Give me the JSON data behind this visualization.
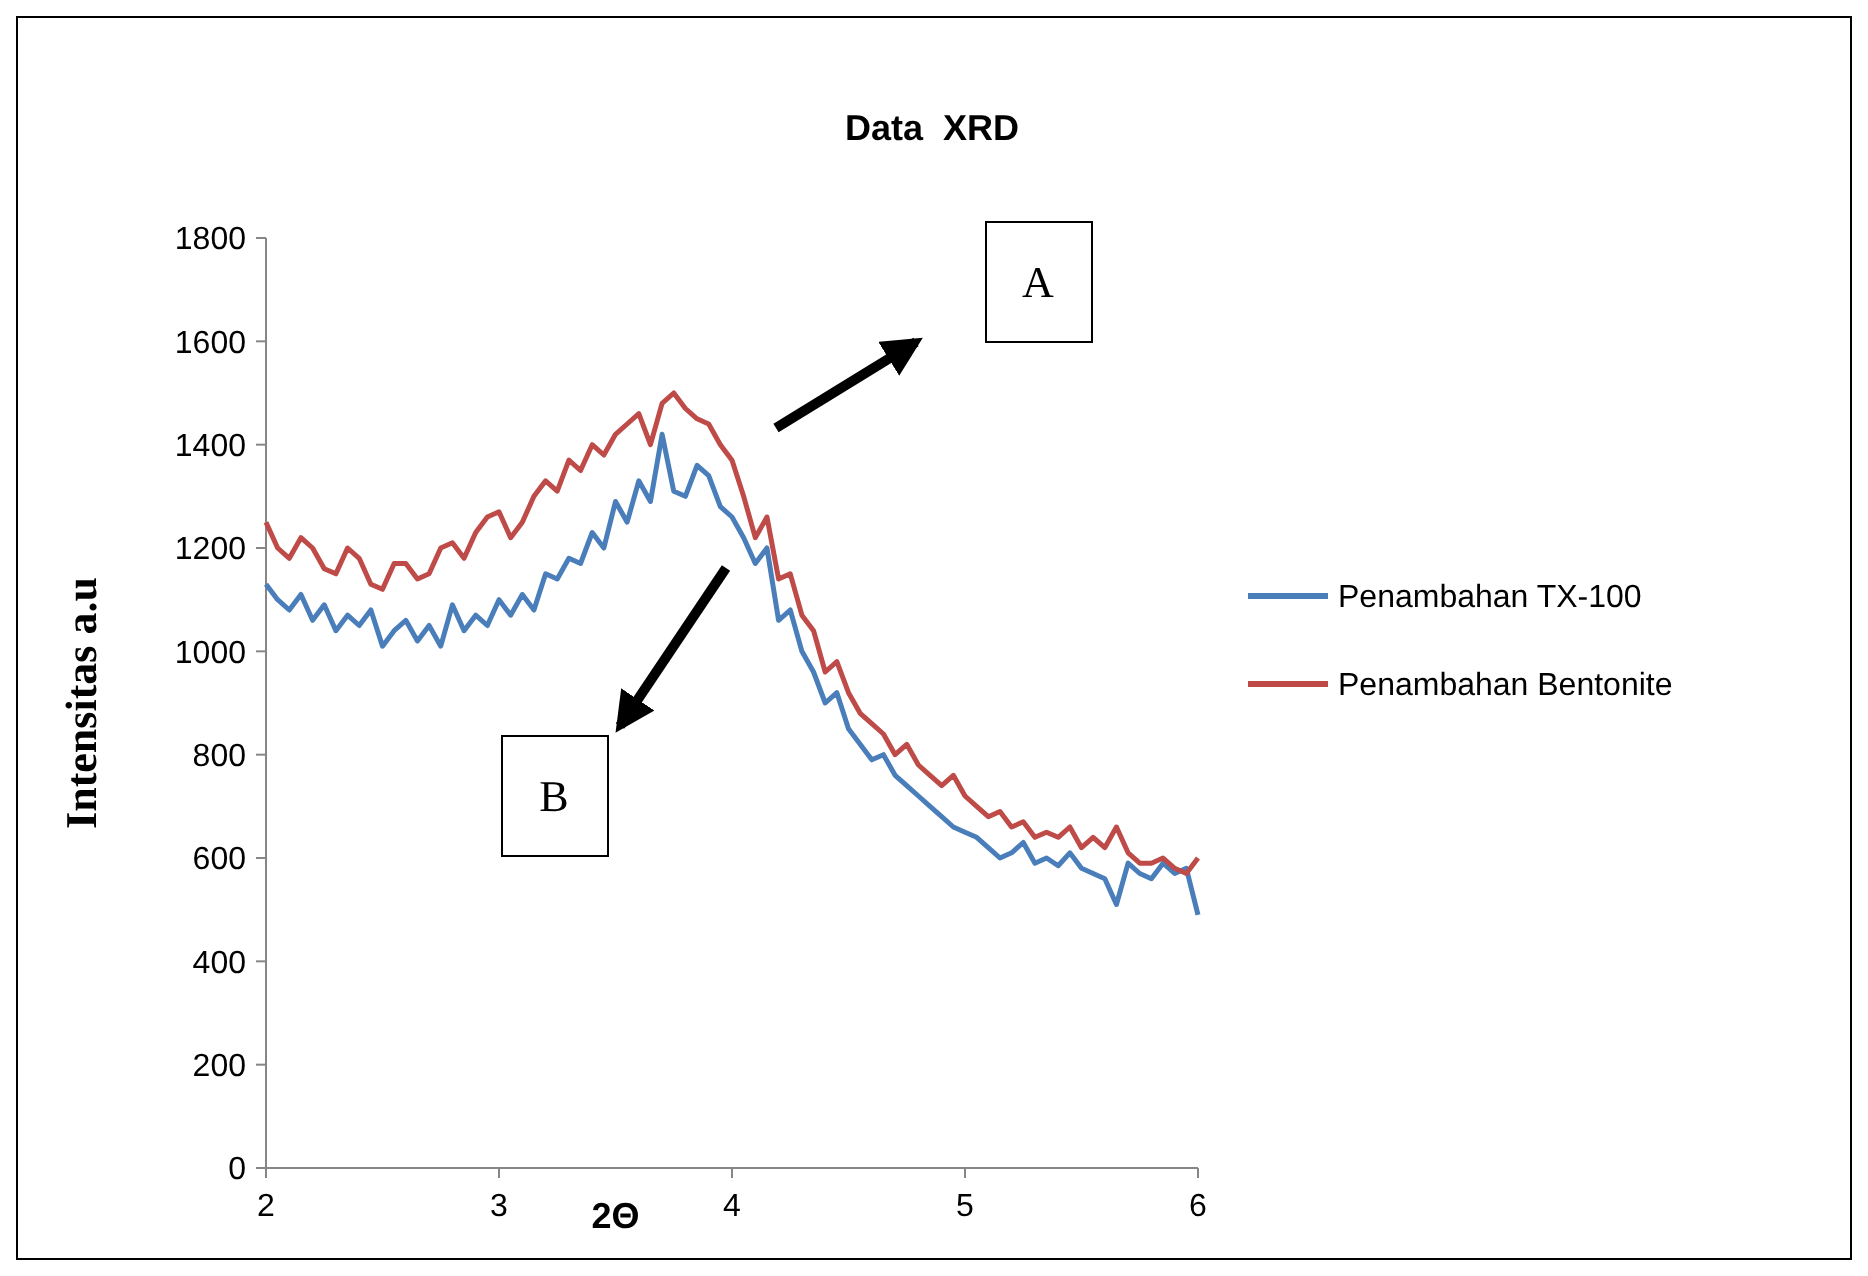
{
  "chart_data": {
    "type": "line",
    "title": "Data  XRD",
    "xlabel": "2Θ",
    "ylabel": "Intensitas a.u",
    "x": [
      2,
      2.05,
      2.1,
      2.15,
      2.2,
      2.25,
      2.3,
      2.35,
      2.4,
      2.45,
      2.5,
      2.55,
      2.6,
      2.65,
      2.7,
      2.75,
      2.8,
      2.85,
      2.9,
      2.95,
      3,
      3.05,
      3.1,
      3.15,
      3.2,
      3.25,
      3.3,
      3.35,
      3.4,
      3.45,
      3.5,
      3.55,
      3.6,
      3.65,
      3.7,
      3.75,
      3.8,
      3.85,
      3.9,
      3.95,
      4,
      4.05,
      4.1,
      4.15,
      4.2,
      4.25,
      4.3,
      4.35,
      4.4,
      4.45,
      4.5,
      4.55,
      4.6,
      4.65,
      4.7,
      4.75,
      4.8,
      4.85,
      4.9,
      4.95,
      5,
      5.05,
      5.1,
      5.15,
      5.2,
      5.25,
      5.3,
      5.35,
      5.4,
      5.45,
      5.5,
      5.55,
      5.6,
      5.65,
      5.7,
      5.75,
      5.8,
      5.85,
      5.9,
      5.95,
      6
    ],
    "series": [
      {
        "name": "Penambahan TX-100",
        "color": "#4a7ebb",
        "values": [
          1130,
          1100,
          1080,
          1110,
          1060,
          1090,
          1040,
          1070,
          1050,
          1080,
          1010,
          1040,
          1060,
          1020,
          1050,
          1010,
          1090,
          1040,
          1070,
          1050,
          1100,
          1070,
          1110,
          1080,
          1150,
          1140,
          1180,
          1170,
          1230,
          1200,
          1290,
          1250,
          1330,
          1290,
          1420,
          1310,
          1300,
          1360,
          1340,
          1280,
          1260,
          1220,
          1170,
          1200,
          1060,
          1080,
          1000,
          960,
          900,
          920,
          850,
          820,
          790,
          800,
          760,
          740,
          720,
          700,
          680,
          660,
          650,
          640,
          620,
          600,
          610,
          630,
          590,
          600,
          585,
          610,
          580,
          570,
          560,
          510,
          590,
          570,
          560,
          590,
          570,
          580,
          490
        ]
      },
      {
        "name": "Penambahan Bentonite",
        "color": "#be4b48",
        "values": [
          1250,
          1200,
          1180,
          1220,
          1200,
          1160,
          1150,
          1200,
          1180,
          1130,
          1120,
          1170,
          1170,
          1140,
          1150,
          1200,
          1210,
          1180,
          1230,
          1260,
          1270,
          1220,
          1250,
          1300,
          1330,
          1310,
          1370,
          1350,
          1400,
          1380,
          1420,
          1440,
          1460,
          1400,
          1480,
          1500,
          1470,
          1450,
          1440,
          1400,
          1370,
          1300,
          1220,
          1260,
          1140,
          1150,
          1070,
          1040,
          960,
          980,
          920,
          880,
          860,
          840,
          800,
          820,
          780,
          760,
          740,
          760,
          720,
          700,
          680,
          690,
          660,
          670,
          640,
          650,
          640,
          660,
          620,
          640,
          620,
          660,
          610,
          590,
          590,
          600,
          580,
          570,
          600
        ]
      }
    ],
    "xlim": [
      2,
      6
    ],
    "xticks": [
      2,
      3,
      4,
      5,
      6
    ],
    "ylim": [
      0,
      1800
    ],
    "yticks": [
      0,
      200,
      400,
      600,
      800,
      1000,
      1200,
      1400,
      1600,
      1800
    ],
    "legend": "right",
    "grid": false,
    "line_style": "solid",
    "annotations": [
      "A",
      "B"
    ]
  }
}
